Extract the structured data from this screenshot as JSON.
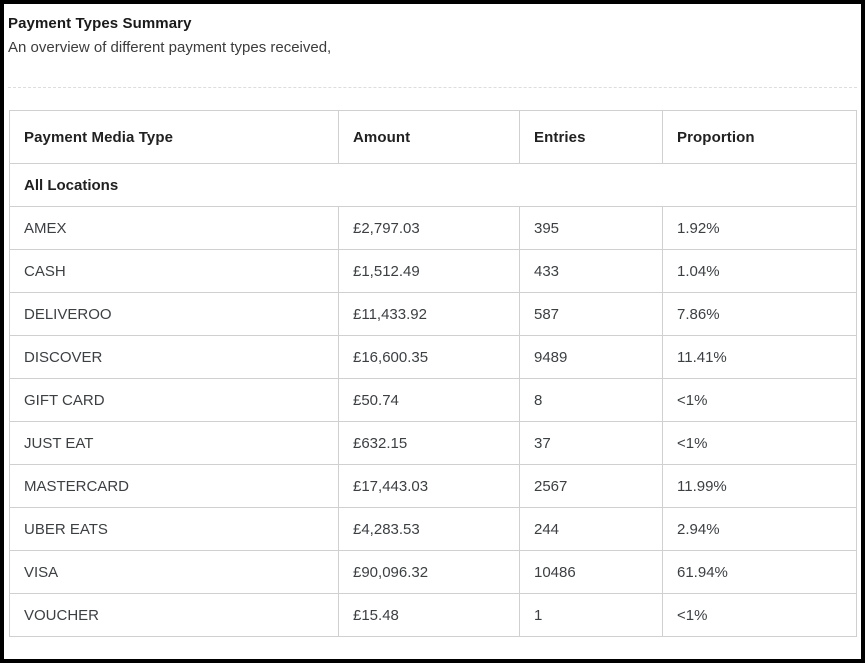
{
  "header": {
    "title": "Payment Types Summary",
    "subtitle": "An overview of different payment types received,"
  },
  "table": {
    "columns": [
      "Payment Media Type",
      "Amount",
      "Entries",
      "Proportion"
    ],
    "group_label": "All Locations",
    "rows": [
      {
        "type": "AMEX",
        "amount": "£2,797.03",
        "entries": "395",
        "proportion": "1.92%"
      },
      {
        "type": "CASH",
        "amount": "£1,512.49",
        "entries": "433",
        "proportion": "1.04%"
      },
      {
        "type": "DELIVEROO",
        "amount": "£11,433.92",
        "entries": "587",
        "proportion": "7.86%"
      },
      {
        "type": "DISCOVER",
        "amount": "£16,600.35",
        "entries": "9489",
        "proportion": "11.41%"
      },
      {
        "type": "GIFT CARD",
        "amount": "£50.74",
        "entries": "8",
        "proportion": "<1%"
      },
      {
        "type": "JUST EAT",
        "amount": "£632.15",
        "entries": "37",
        "proportion": "<1%"
      },
      {
        "type": "MASTERCARD",
        "amount": "£17,443.03",
        "entries": "2567",
        "proportion": "11.99%"
      },
      {
        "type": "UBER EATS",
        "amount": "£4,283.53",
        "entries": "244",
        "proportion": "2.94%"
      },
      {
        "type": "VISA",
        "amount": "£90,096.32",
        "entries": "10486",
        "proportion": "61.94%"
      },
      {
        "type": "VOUCHER",
        "amount": "£15.48",
        "entries": "1",
        "proportion": "<1%"
      }
    ]
  },
  "colors": {
    "frame_border": "#000000",
    "table_border": "#d0d0d0",
    "header_text": "#212121",
    "body_text": "#3c4043"
  }
}
